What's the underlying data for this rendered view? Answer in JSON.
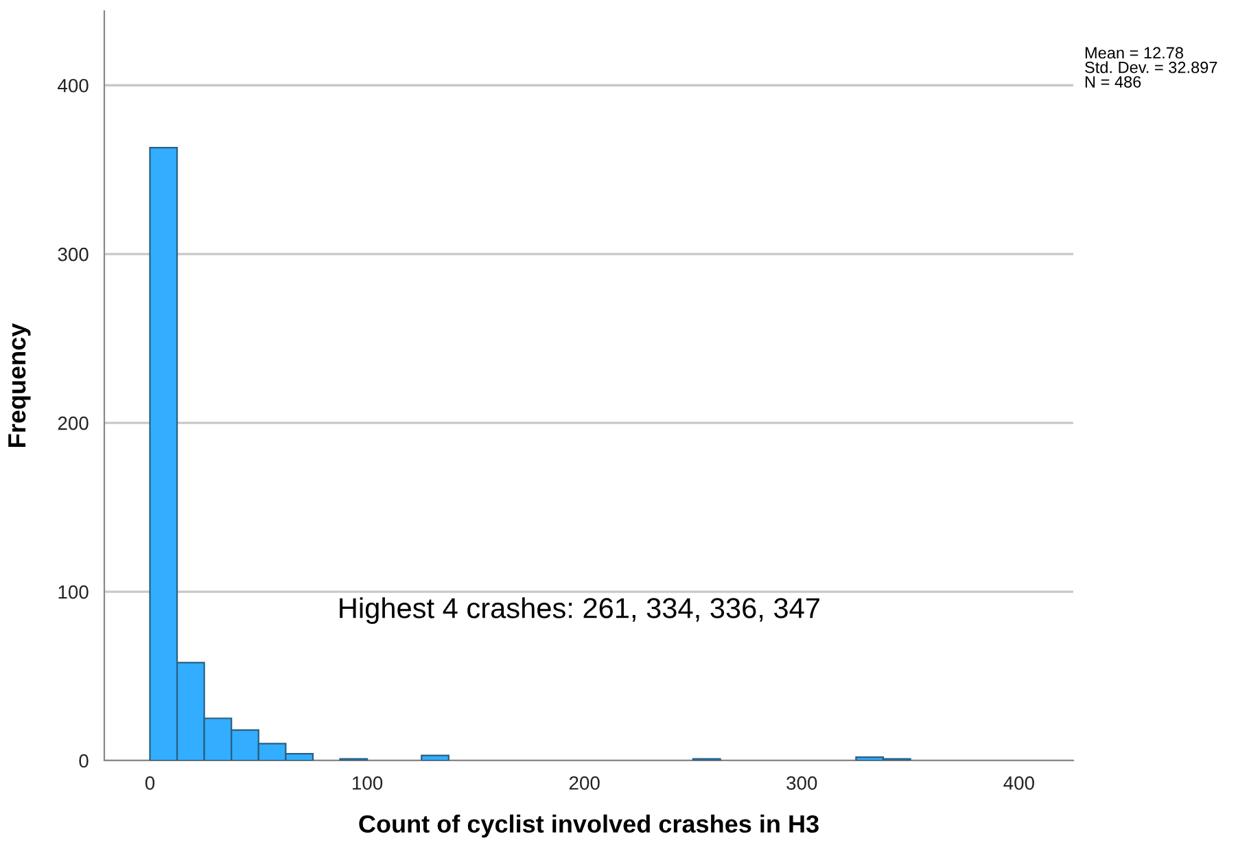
{
  "chart_data": {
    "type": "histogram",
    "xlabel": "Count of cyclist involved crashes in H3",
    "ylabel": "Frequency",
    "bins": [
      0,
      12.5,
      25,
      37.5,
      50,
      62.5,
      75,
      87.5,
      100,
      112.5,
      125,
      137.5,
      150,
      162.5,
      175,
      187.5,
      200,
      212.5,
      225,
      237.5,
      250,
      262.5,
      275,
      287.5,
      300,
      312.5,
      325,
      337.5,
      350
    ],
    "values": [
      363,
      58,
      25,
      18,
      10,
      4,
      0,
      1,
      0,
      0,
      3,
      0,
      0,
      0,
      0,
      0,
      0,
      0,
      0,
      0,
      1,
      0,
      0,
      0,
      0,
      0,
      2,
      1
    ],
    "color": "#33adff",
    "xlim": [
      -21,
      425
    ],
    "ylim": [
      0,
      444
    ],
    "xticks": [
      0,
      100,
      200,
      300,
      400
    ],
    "yticks": [
      0,
      100,
      200,
      300,
      400
    ],
    "grid": "y",
    "legend": false,
    "annotations": [
      "Mean = 12.78\nStd. Dev. = 32.897\nN = 486",
      "Highest 4 crashes: 261, 334, 336, 347"
    ]
  }
}
